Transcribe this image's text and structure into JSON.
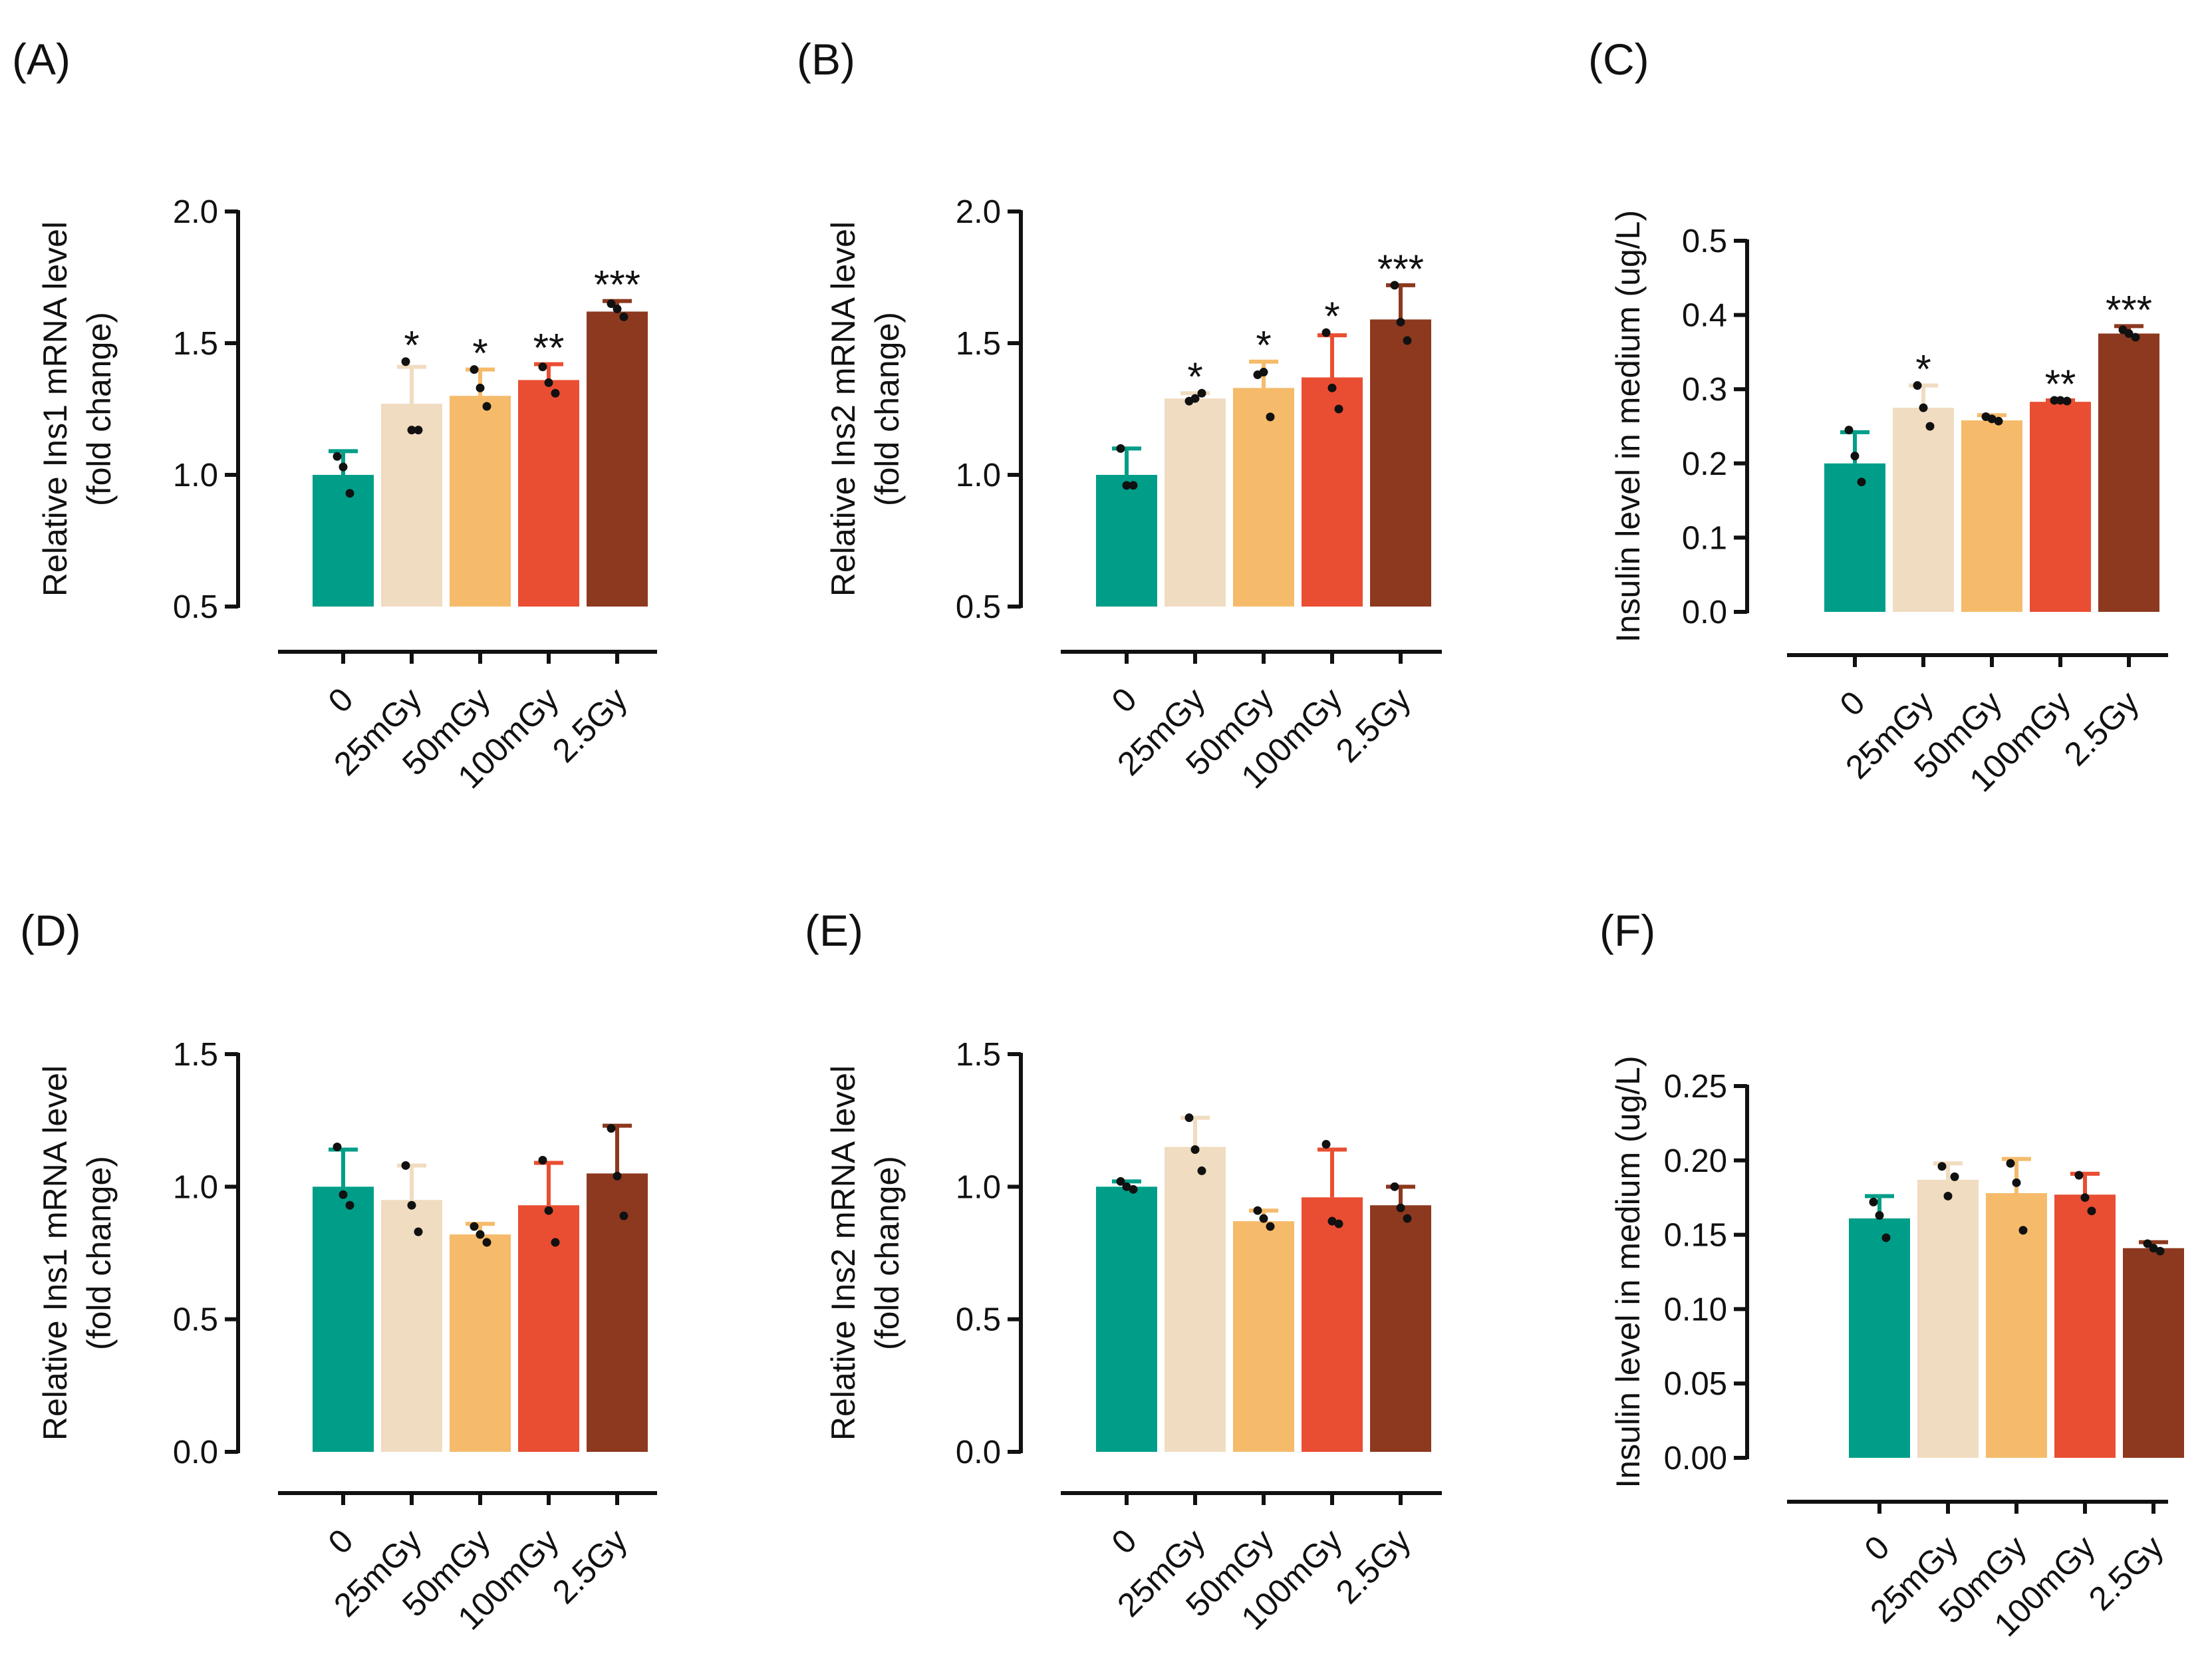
{
  "colors": [
    "#009E88",
    "#F0DCC0",
    "#F5BB6B",
    "#E94E32",
    "#8D391F"
  ],
  "chart_data": [
    {
      "type": "bar",
      "panel_label": "(A)",
      "ylabel_lines": [
        "Relative Ins1 mRNA level",
        "(fold change)"
      ],
      "categories": [
        "0",
        "25mGy",
        "50mGy",
        "100mGy",
        "2.5Gy"
      ],
      "ylim": [
        0.5,
        2.0
      ],
      "yticks": [
        "0.5",
        "1.0",
        "1.5",
        "2.0"
      ],
      "values": [
        1.0,
        1.27,
        1.3,
        1.36,
        1.62
      ],
      "errors": [
        0.09,
        0.14,
        0.1,
        0.06,
        0.04
      ],
      "points": [
        [
          1.07,
          0.93,
          1.03
        ],
        [
          1.43,
          1.17,
          1.17
        ],
        [
          1.4,
          1.26,
          1.33
        ],
        [
          1.41,
          1.31,
          1.35
        ],
        [
          1.65,
          1.6,
          1.63
        ]
      ],
      "significance": [
        "",
        "*",
        "*",
        "**",
        "***"
      ]
    },
    {
      "type": "bar",
      "panel_label": "(B)",
      "ylabel_lines": [
        "Relative Ins2 mRNA level",
        "(fold change)"
      ],
      "categories": [
        "0",
        "25mGy",
        "50mGy",
        "100mGy",
        "2.5Gy"
      ],
      "ylim": [
        0.5,
        2.0
      ],
      "yticks": [
        "0.5",
        "1.0",
        "1.5",
        "2.0"
      ],
      "values": [
        1.0,
        1.29,
        1.33,
        1.37,
        1.59
      ],
      "errors": [
        0.1,
        0.02,
        0.1,
        0.16,
        0.13
      ],
      "points": [
        [
          1.1,
          0.96,
          0.96
        ],
        [
          1.28,
          1.31,
          1.29
        ],
        [
          1.38,
          1.22,
          1.39
        ],
        [
          1.54,
          1.25,
          1.33
        ],
        [
          1.72,
          1.51,
          1.58
        ]
      ],
      "significance": [
        "",
        "*",
        "*",
        "*",
        "***"
      ]
    },
    {
      "type": "bar",
      "panel_label": "(C)",
      "ylabel_lines": [
        "Insulin level in medium (ug/L)"
      ],
      "categories": [
        "0",
        "25mGy",
        "50mGy",
        "100mGy",
        "2.5Gy"
      ],
      "ylim": [
        0.0,
        0.5
      ],
      "yticks": [
        "0.0",
        "0.1",
        "0.2",
        "0.3",
        "0.4",
        "0.5"
      ],
      "values": [
        0.2,
        0.275,
        0.258,
        0.283,
        0.375
      ],
      "errors": [
        0.042,
        0.03,
        0.007,
        0.002,
        0.01
      ],
      "points": [
        [
          0.245,
          0.175,
          0.21
        ],
        [
          0.305,
          0.25,
          0.275
        ],
        [
          0.263,
          0.257,
          0.26
        ],
        [
          0.285,
          0.284,
          0.285
        ],
        [
          0.38,
          0.37,
          0.375
        ]
      ],
      "significance": [
        "",
        "*",
        "",
        "**",
        "***"
      ]
    },
    {
      "type": "bar",
      "panel_label": "(D)",
      "ylabel_lines": [
        "Relative Ins1 mRNA level",
        "(fold change)"
      ],
      "categories": [
        "0",
        "25mGy",
        "50mGy",
        "100mGy",
        "2.5Gy"
      ],
      "ylim": [
        0.0,
        1.5
      ],
      "yticks": [
        "0.0",
        "0.5",
        "1.0",
        "1.5"
      ],
      "values": [
        1.0,
        0.95,
        0.82,
        0.93,
        1.05
      ],
      "errors": [
        0.14,
        0.13,
        0.04,
        0.16,
        0.18
      ],
      "points": [
        [
          1.15,
          0.93,
          0.97
        ],
        [
          1.08,
          0.83,
          0.93
        ],
        [
          0.85,
          0.79,
          0.82
        ],
        [
          1.1,
          0.79,
          0.91
        ],
        [
          1.22,
          0.89,
          1.04
        ]
      ],
      "significance": [
        "",
        "",
        "",
        "",
        ""
      ]
    },
    {
      "type": "bar",
      "panel_label": "(E)",
      "ylabel_lines": [
        "Relative Ins2 mRNA level",
        "(fold change)"
      ],
      "categories": [
        "0",
        "25mGy",
        "50mGy",
        "100mGy",
        "2.5Gy"
      ],
      "ylim": [
        0.0,
        1.5
      ],
      "yticks": [
        "0.0",
        "0.5",
        "1.0",
        "1.5"
      ],
      "values": [
        1.0,
        1.15,
        0.87,
        0.96,
        0.93
      ],
      "errors": [
        0.02,
        0.11,
        0.04,
        0.18,
        0.07
      ],
      "points": [
        [
          1.02,
          0.99,
          1.0
        ],
        [
          1.26,
          1.06,
          1.14
        ],
        [
          0.91,
          0.85,
          0.88
        ],
        [
          1.16,
          0.86,
          0.87
        ],
        [
          1.0,
          0.88,
          0.92
        ]
      ],
      "significance": [
        "",
        "",
        "",
        "",
        ""
      ]
    },
    {
      "type": "bar",
      "panel_label": "(F)",
      "ylabel_lines": [
        "Insulin level in medium (ug/L)"
      ],
      "categories": [
        "0",
        "25mGy",
        "50mGy",
        "100mGy",
        "2.5Gy"
      ],
      "ylim": [
        0.0,
        0.25
      ],
      "yticks": [
        "0.00",
        "0.05",
        "0.10",
        "0.15",
        "0.20",
        "0.25"
      ],
      "values": [
        0.161,
        0.187,
        0.178,
        0.177,
        0.141
      ],
      "errors": [
        0.015,
        0.011,
        0.023,
        0.014,
        0.004
      ],
      "points": [
        [
          0.172,
          0.148,
          0.163
        ],
        [
          0.196,
          0.189,
          0.176
        ],
        [
          0.198,
          0.153,
          0.185
        ],
        [
          0.19,
          0.166,
          0.175
        ],
        [
          0.144,
          0.139,
          0.141
        ]
      ],
      "significance": [
        "",
        "",
        "",
        "",
        ""
      ]
    }
  ]
}
